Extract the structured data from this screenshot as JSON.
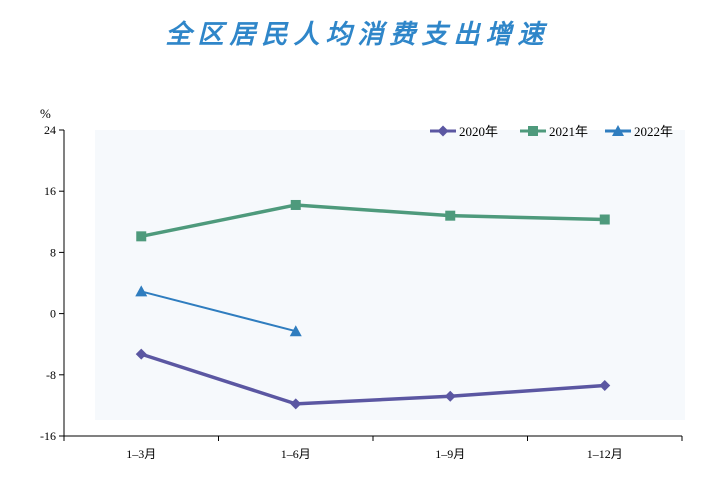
{
  "title": "全区居民人均消费支出增速",
  "chart_data": {
    "type": "line",
    "title": "全区居民人均消费支出增速",
    "ylabel": "%",
    "xlabel": "",
    "categories": [
      "1–3月",
      "1–6月",
      "1–9月",
      "1–12月"
    ],
    "ylim": [
      -16,
      24
    ],
    "yticks": [
      24,
      16,
      8,
      0,
      -8,
      -16
    ],
    "grid": false,
    "legend_position": "top-right",
    "series": [
      {
        "name": "2020年",
        "color": "#5b57a2",
        "marker": "diamond",
        "values": [
          -5.3,
          -11.8,
          -10.8,
          -9.4
        ]
      },
      {
        "name": "2021年",
        "color": "#4e9a7c",
        "marker": "square",
        "values": [
          10.1,
          14.2,
          12.8,
          12.3
        ]
      },
      {
        "name": "2022年",
        "color": "#2f7dbf",
        "marker": "triangle",
        "values": [
          2.9,
          -2.3,
          null,
          null
        ]
      }
    ]
  }
}
